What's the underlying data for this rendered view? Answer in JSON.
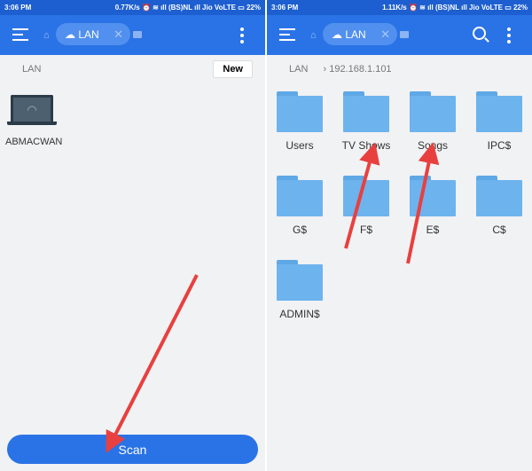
{
  "left": {
    "status": {
      "time": "3:06 PM",
      "info": "0.77K/s ⏰ ≋ ıll (BS)NL ıll Jio VoLTE ▭ 22%"
    },
    "toolbar": {
      "tab_label": "LAN"
    },
    "breadcrumb": "LAN",
    "new_label": "New",
    "devices": [
      {
        "name": "ABMACWAN"
      }
    ],
    "scan_label": "Scan"
  },
  "right": {
    "status": {
      "time": "3:06 PM",
      "info": "1.11K/s ⏰ ≋ ıll (BS)NL ıll Jio VoLTE ▭ 22%"
    },
    "toolbar": {
      "tab_label": "LAN"
    },
    "breadcrumb": [
      "LAN",
      "192.168.1.101"
    ],
    "folders": [
      "Users",
      "TV Shows",
      "Songs",
      "IPC$",
      "G$",
      "F$",
      "E$",
      "C$",
      "ADMIN$"
    ]
  },
  "colors": {
    "accent": "#2a73e6",
    "annotation_arrow": "#e8403f"
  }
}
